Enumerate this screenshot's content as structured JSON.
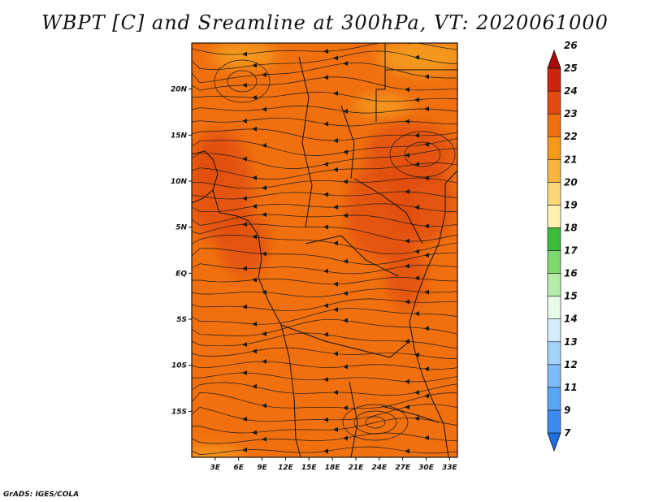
{
  "title": "WBPT [C] and Sreamline at 300hPa, VT: 2020061000",
  "credit": "GrADS: IGES/COLA",
  "map": {
    "lon_range": [
      0,
      34
    ],
    "lat_range": [
      -20,
      25
    ],
    "lon_ticks": [
      {
        "value": 3,
        "label": "3E"
      },
      {
        "value": 6,
        "label": "6E"
      },
      {
        "value": 9,
        "label": "9E"
      },
      {
        "value": 12,
        "label": "12E"
      },
      {
        "value": 15,
        "label": "15E"
      },
      {
        "value": 18,
        "label": "18E"
      },
      {
        "value": 21,
        "label": "21E"
      },
      {
        "value": 24,
        "label": "24E"
      },
      {
        "value": 27,
        "label": "27E"
      },
      {
        "value": 30,
        "label": "30E"
      },
      {
        "value": 33,
        "label": "33E"
      }
    ],
    "lat_ticks": [
      {
        "value": 20,
        "label": "20N"
      },
      {
        "value": 15,
        "label": "15N"
      },
      {
        "value": 10,
        "label": "10N"
      },
      {
        "value": 5,
        "label": "5N"
      },
      {
        "value": 0,
        "label": "EQ"
      },
      {
        "value": -5,
        "label": "5S"
      },
      {
        "value": -10,
        "label": "10S"
      },
      {
        "value": -15,
        "label": "15S"
      }
    ],
    "base_color": "#f07010",
    "warm_color": "#e04c10",
    "cool_color": "#f5a020"
  },
  "colorbar": {
    "levels": [
      {
        "label": "7",
        "color": "#1e6fe0"
      },
      {
        "label": "9",
        "color": "#3c8cef"
      },
      {
        "label": "11",
        "color": "#5aa5f5"
      },
      {
        "label": "12",
        "color": "#7dbcf8"
      },
      {
        "label": "13",
        "color": "#a5d2fb"
      },
      {
        "label": "14",
        "color": "#d2ecfd"
      },
      {
        "label": "15",
        "color": "#e8fae8"
      },
      {
        "label": "16",
        "color": "#b5ecaa"
      },
      {
        "label": "17",
        "color": "#7fd86e"
      },
      {
        "label": "18",
        "color": "#3cbc3c"
      },
      {
        "label": "19",
        "color": "#fff2b0"
      },
      {
        "label": "20",
        "color": "#fcd878"
      },
      {
        "label": "21",
        "color": "#f8b440"
      },
      {
        "label": "22",
        "color": "#f59a18"
      },
      {
        "label": "23",
        "color": "#f07010"
      },
      {
        "label": "24",
        "color": "#e24a12"
      },
      {
        "label": "25",
        "color": "#cc2410"
      },
      {
        "label": "26",
        "color": "#a80c0c"
      }
    ]
  }
}
